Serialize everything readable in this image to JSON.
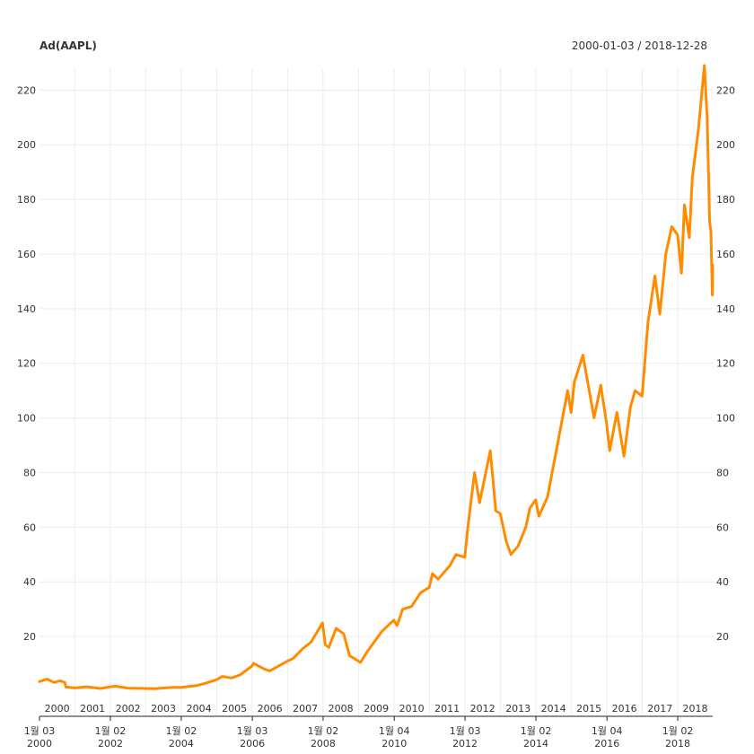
{
  "chart_data": {
    "type": "line",
    "title": "Ad(AAPL)",
    "date_range": "2000-01-03 / 2018-12-28",
    "x_start": "2000-01-03",
    "x_end": "2018-12-28",
    "ylim": [
      0,
      228
    ],
    "y_ticks": [
      20,
      40,
      60,
      80,
      100,
      120,
      140,
      160,
      180,
      200,
      220
    ],
    "y_tick_labels": [
      "20",
      "40",
      "60",
      "80",
      "100",
      "120",
      "140",
      "160",
      "180",
      "200",
      "220"
    ],
    "year_labels": [
      "2000",
      "2001",
      "2002",
      "2003",
      "2004",
      "2005",
      "2006",
      "2007",
      "2008",
      "2009",
      "2010",
      "2011",
      "2012",
      "2013",
      "2014",
      "2015",
      "2016",
      "2017",
      "2018"
    ],
    "bottom_ticks": [
      {
        "top": "1월 03",
        "bottom": "2000",
        "date": "2000-01-03"
      },
      {
        "top": "1월 02",
        "bottom": "2002",
        "date": "2002-01-02"
      },
      {
        "top": "1월 02",
        "bottom": "2004",
        "date": "2004-01-02"
      },
      {
        "top": "1월 03",
        "bottom": "2006",
        "date": "2006-01-03"
      },
      {
        "top": "1월 02",
        "bottom": "2008",
        "date": "2008-01-02"
      },
      {
        "top": "1월 04",
        "bottom": "2010",
        "date": "2010-01-04"
      },
      {
        "top": "1월 03",
        "bottom": "2012",
        "date": "2012-01-03"
      },
      {
        "top": "1월 02",
        "bottom": "2014",
        "date": "2014-01-02"
      },
      {
        "top": "1월 04",
        "bottom": "2016",
        "date": "2016-01-04"
      },
      {
        "top": "1월 02",
        "bottom": "2018",
        "date": "2018-01-02"
      }
    ],
    "grid": true,
    "color": "#ff8c00",
    "series": [
      {
        "values": [
          [
            "2000-01-03",
            3.5
          ],
          [
            "2000-03-22",
            4.4
          ],
          [
            "2000-06-01",
            3.2
          ],
          [
            "2000-08-01",
            3.8
          ],
          [
            "2000-09-20",
            3.2
          ],
          [
            "2000-10-01",
            1.5
          ],
          [
            "2001-01-02",
            1.2
          ],
          [
            "2001-05-01",
            1.6
          ],
          [
            "2001-09-20",
            1.0
          ],
          [
            "2001-12-31",
            1.6
          ],
          [
            "2002-03-01",
            1.8
          ],
          [
            "2002-07-01",
            1.1
          ],
          [
            "2002-12-31",
            1.0
          ],
          [
            "2003-04-01",
            0.9
          ],
          [
            "2003-10-01",
            1.4
          ],
          [
            "2003-12-31",
            1.4
          ],
          [
            "2004-06-01",
            2.0
          ],
          [
            "2004-09-01",
            2.8
          ],
          [
            "2004-12-31",
            4.2
          ],
          [
            "2005-03-01",
            5.4
          ],
          [
            "2005-06-01",
            4.8
          ],
          [
            "2005-09-01",
            6.0
          ],
          [
            "2005-12-31",
            9.2
          ],
          [
            "2006-01-15",
            10.2
          ],
          [
            "2006-05-01",
            8.2
          ],
          [
            "2006-07-01",
            7.4
          ],
          [
            "2006-12-31",
            11.0
          ],
          [
            "2007-03-01",
            12.0
          ],
          [
            "2007-06-01",
            15.4
          ],
          [
            "2007-09-01",
            18.0
          ],
          [
            "2007-12-27",
            25.0
          ],
          [
            "2008-01-25",
            17.0
          ],
          [
            "2008-03-01",
            16.0
          ],
          [
            "2008-05-15",
            23.0
          ],
          [
            "2008-08-01",
            21.0
          ],
          [
            "2008-10-01",
            13.0
          ],
          [
            "2008-12-31",
            11.0
          ],
          [
            "2009-01-20",
            10.5
          ],
          [
            "2009-04-01",
            14.5
          ],
          [
            "2009-06-01",
            17.5
          ],
          [
            "2009-09-01",
            22.0
          ],
          [
            "2009-12-31",
            26.0
          ],
          [
            "2010-02-01",
            24.0
          ],
          [
            "2010-04-01",
            30.0
          ],
          [
            "2010-07-01",
            31.0
          ],
          [
            "2010-10-01",
            36.0
          ],
          [
            "2010-12-31",
            38.0
          ],
          [
            "2011-02-01",
            43.0
          ],
          [
            "2011-04-01",
            41.0
          ],
          [
            "2011-08-01",
            46.0
          ],
          [
            "2011-10-01",
            50.0
          ],
          [
            "2011-12-31",
            49.0
          ],
          [
            "2012-02-01",
            60.0
          ],
          [
            "2012-04-10",
            80.0
          ],
          [
            "2012-06-01",
            69.0
          ],
          [
            "2012-09-19",
            88.0
          ],
          [
            "2012-11-15",
            66.0
          ],
          [
            "2012-12-31",
            65.0
          ],
          [
            "2013-03-01",
            55.0
          ],
          [
            "2013-04-19",
            50.0
          ],
          [
            "2013-07-01",
            53.0
          ],
          [
            "2013-09-20",
            60.0
          ],
          [
            "2013-11-01",
            67.0
          ],
          [
            "2013-12-31",
            70.0
          ],
          [
            "2014-02-01",
            64.0
          ],
          [
            "2014-05-01",
            71.0
          ],
          [
            "2014-09-01",
            94.0
          ],
          [
            "2014-11-25",
            110.0
          ],
          [
            "2014-12-31",
            102.0
          ],
          [
            "2015-02-01",
            113.0
          ],
          [
            "2015-05-01",
            123.0
          ],
          [
            "2015-08-24",
            100.0
          ],
          [
            "2015-11-01",
            112.0
          ],
          [
            "2015-12-31",
            98.0
          ],
          [
            "2016-02-01",
            88.0
          ],
          [
            "2016-04-15",
            102.0
          ],
          [
            "2016-06-27",
            86.0
          ],
          [
            "2016-09-01",
            104.0
          ],
          [
            "2016-10-20",
            110.0
          ],
          [
            "2016-12-31",
            108.0
          ],
          [
            "2017-03-01",
            135.0
          ],
          [
            "2017-05-12",
            152.0
          ],
          [
            "2017-07-01",
            138.0
          ],
          [
            "2017-09-01",
            160.0
          ],
          [
            "2017-11-01",
            170.0
          ],
          [
            "2017-12-31",
            167.0
          ],
          [
            "2018-02-09",
            153.0
          ],
          [
            "2018-03-12",
            178.0
          ],
          [
            "2018-05-01",
            166.0
          ],
          [
            "2018-06-01",
            188.0
          ],
          [
            "2018-08-01",
            205.0
          ],
          [
            "2018-10-03",
            229.0
          ],
          [
            "2018-11-01",
            210.0
          ],
          [
            "2018-11-26",
            172.0
          ],
          [
            "2018-12-10",
            168.0
          ],
          [
            "2018-12-24",
            145.0
          ],
          [
            "2018-12-28",
            156.0
          ]
        ]
      }
    ]
  }
}
